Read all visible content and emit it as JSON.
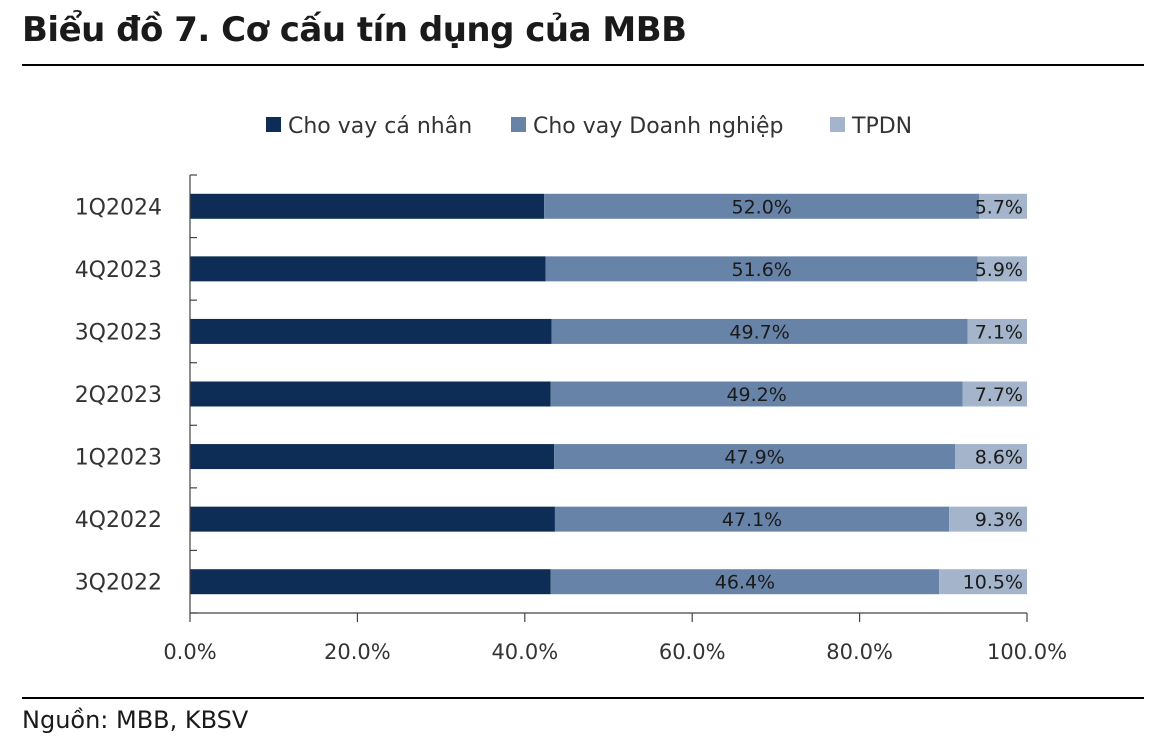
{
  "title": "Biểu đồ 7. Cơ cấu tín dụng của MBB",
  "source": "Nguồn: MBB, KBSV",
  "chart_data": {
    "type": "bar",
    "orientation": "horizontal",
    "stacked": true,
    "categories": [
      "1Q2024",
      "4Q2023",
      "3Q2023",
      "2Q2023",
      "1Q2023",
      "4Q2022",
      "3Q2022"
    ],
    "series": [
      {
        "name": "Cho vay cá nhân",
        "color": "#0d2d57",
        "values": [
          42.3,
          42.5,
          43.2,
          43.1,
          43.5,
          43.6,
          43.1
        ],
        "labels": [
          "",
          "",
          "",
          "",
          "",
          "",
          ""
        ]
      },
      {
        "name": "Cho vay Doanh nghiệp",
        "color": "#6784a8",
        "values": [
          52.0,
          51.6,
          49.7,
          49.2,
          47.9,
          47.1,
          46.4
        ],
        "labels": [
          "52.0%",
          "51.6%",
          "49.7%",
          "49.2%",
          "47.9%",
          "47.1%",
          "46.4%"
        ]
      },
      {
        "name": "TPDN",
        "color": "#a4b4ca",
        "values": [
          5.7,
          5.9,
          7.1,
          7.7,
          8.6,
          9.3,
          10.5
        ],
        "labels": [
          "5.7%",
          "5.9%",
          "7.1%",
          "7.7%",
          "8.6%",
          "9.3%",
          "10.5%"
        ]
      }
    ],
    "xlim": [
      0,
      100
    ],
    "xticks": [
      "0.0%",
      "20.0%",
      "40.0%",
      "60.0%",
      "80.0%",
      "100.0%"
    ],
    "legend": "top",
    "grid": false
  }
}
